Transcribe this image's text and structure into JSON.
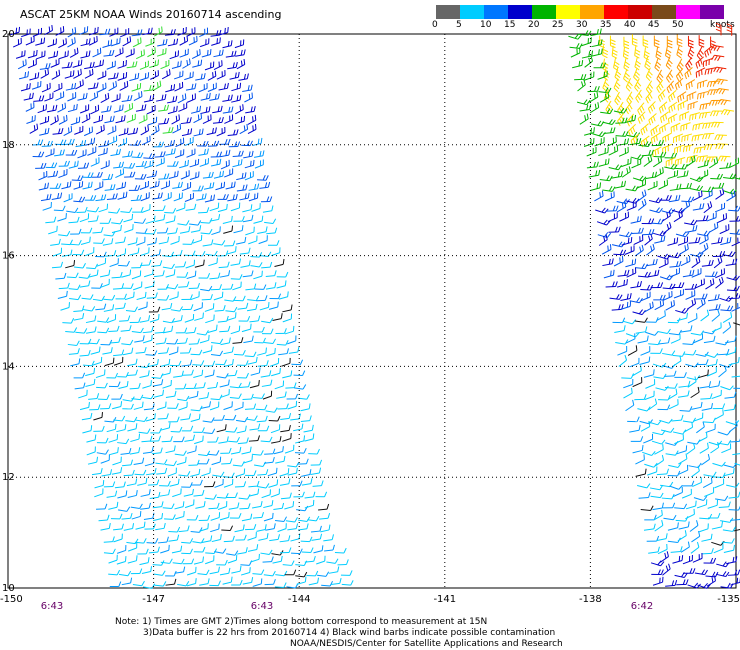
{
  "title": "ASCAT 25KM NOAA Winds 20160714 ascending",
  "legend": {
    "unit_label": "knots",
    "labels": [
      "0",
      "5",
      "10",
      "15",
      "20",
      "25",
      "30",
      "35",
      "40",
      "45",
      "50"
    ],
    "colors": [
      "#666666",
      "#00ccff",
      "#0077ff",
      "#0000cc",
      "#00b400",
      "#ffff00",
      "#ffa500",
      "#ff0000",
      "#cc0000",
      "#7a4a1a",
      "#ff00ff",
      "#7a00aa"
    ]
  },
  "map": {
    "lon_range": [
      -150,
      -135
    ],
    "lat_range": [
      10,
      20
    ],
    "lon_ticks": [
      "-150",
      "-147",
      "-144",
      "-141",
      "-138",
      "-135"
    ],
    "lat_ticks": [
      "20",
      "18",
      "16",
      "14",
      "12",
      "10"
    ],
    "grid_line_color": "#000000",
    "time_labels": [
      "6:43",
      "6:43",
      "6:42"
    ],
    "time_label_color": "#660066"
  },
  "notes": {
    "line1": "Note: 1) Times are GMT 2)Times along bottom correspond to measurement at 15N",
    "line2": "3)Data buffer is 22 hrs from 20160714 4) Black wind barbs indicate possible contamination",
    "line3": "NOAA/NESDIS/Center for Satellite Applications and Research"
  }
}
